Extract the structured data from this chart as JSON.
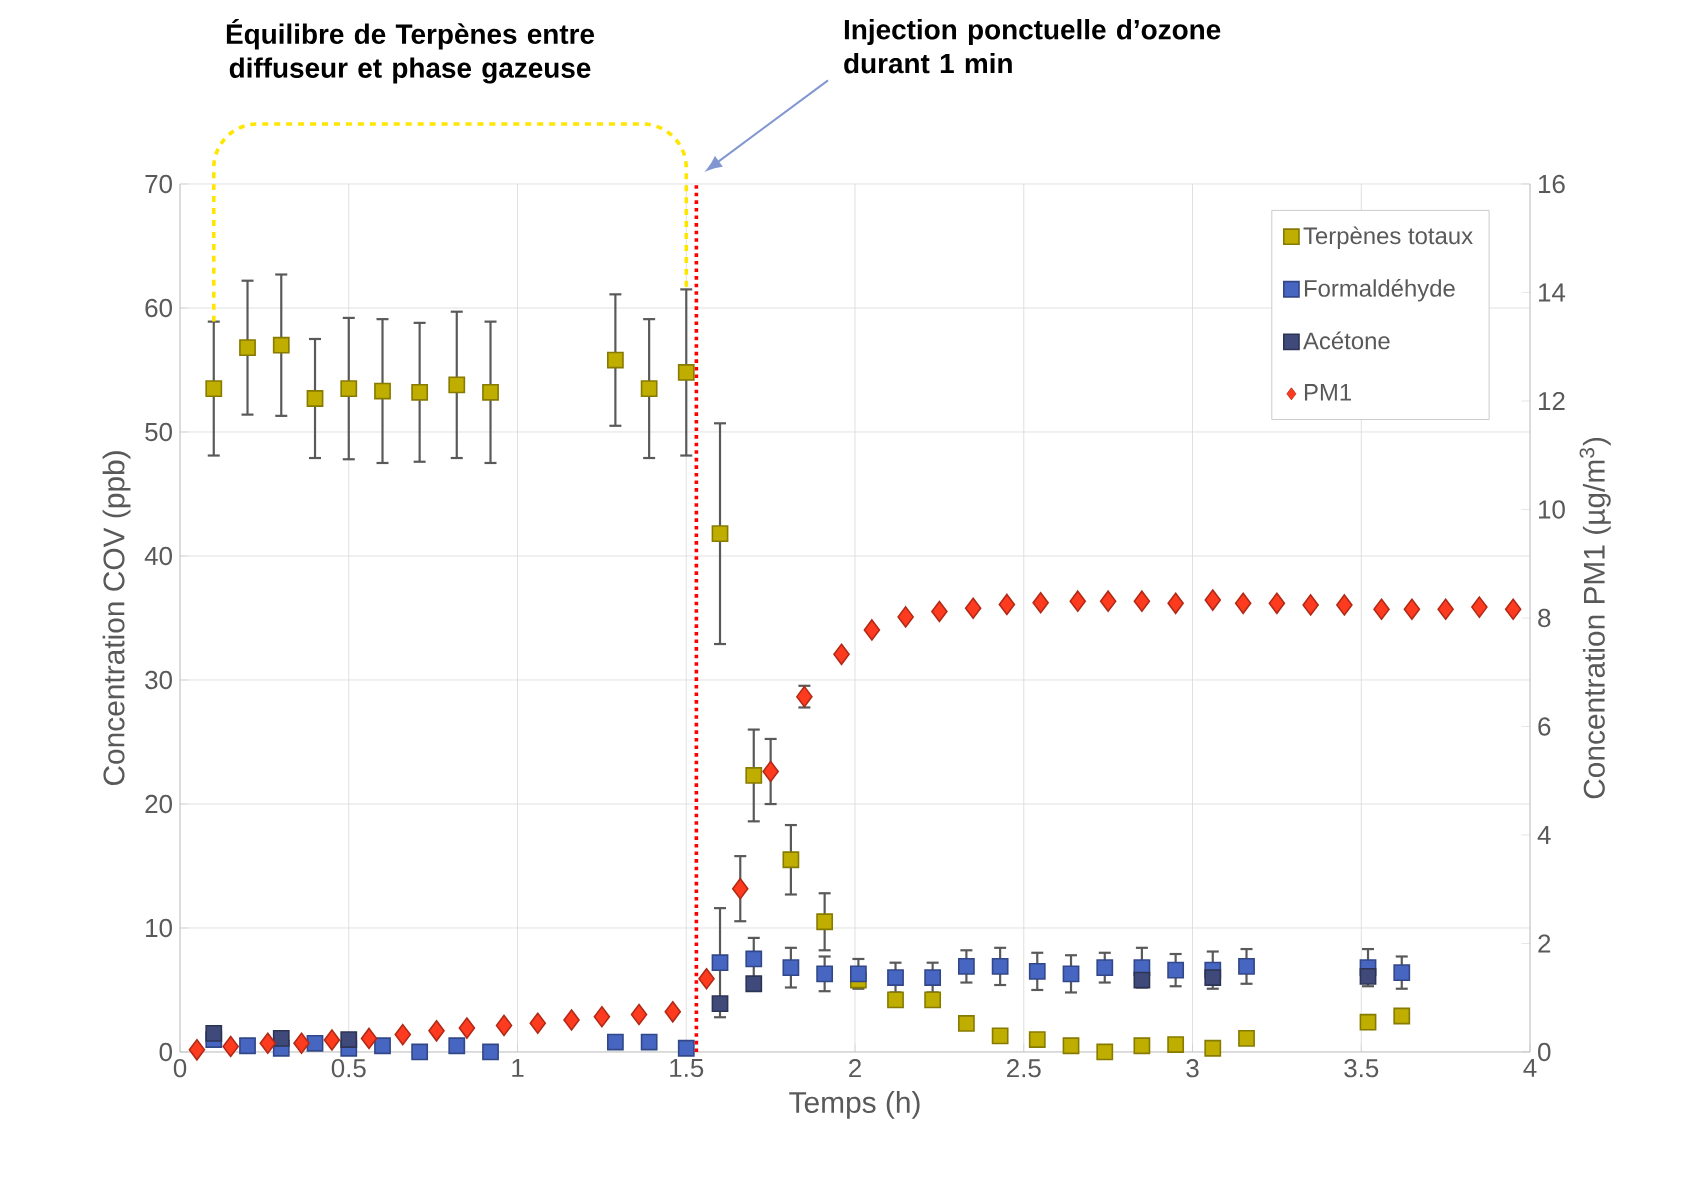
{
  "chart_data": {
    "type": "scatter",
    "xlabel": "Temps (h)",
    "ylabel": "Concentration COV (ppb)",
    "y2label": "Concentration PM1 (µg/m$^{3}$)",
    "annotations": [
      "Équilibre de Terpènes entre diffuseur et phase gazeuse",
      "Injection ponctuelle d’ozone durant 1 min"
    ],
    "xlim": [
      0,
      4
    ],
    "xticks": [
      0,
      0.5,
      1,
      1.5,
      2,
      2.5,
      3,
      3.5,
      4
    ],
    "ylim": [
      0,
      70
    ],
    "yticks": [
      0,
      10,
      20,
      30,
      40,
      50,
      60,
      70
    ],
    "y2lim": [
      0,
      16
    ],
    "y2ticks": [
      0,
      2,
      4,
      6,
      8,
      10,
      12,
      14,
      16
    ],
    "grid": true,
    "legend": "top right",
    "ref_lines": [
      {
        "axis": "x",
        "value": 1.53,
        "color": "#ff0000",
        "line_style": "dotted"
      }
    ],
    "series": [
      {
        "name": "Terpènes totaux",
        "color": "#bfae00",
        "marker": "square",
        "x": [
          0.1,
          0.2,
          0.3,
          0.4,
          0.5,
          0.6,
          0.71,
          0.82,
          0.92,
          1.29,
          1.39,
          1.5,
          1.6,
          1.7,
          1.81,
          1.91,
          2.01,
          2.12,
          2.23,
          2.33,
          2.43,
          2.54,
          2.64,
          2.74,
          2.85,
          2.95,
          3.06,
          3.16,
          3.52,
          3.62
        ],
        "values": [
          53.5,
          56.8,
          57.0,
          52.7,
          53.5,
          53.3,
          53.2,
          53.8,
          53.2,
          55.8,
          53.5,
          54.8,
          41.8,
          22.3,
          15.5,
          10.5,
          5.8,
          4.2,
          4.2,
          2.3,
          1.3,
          1.0,
          0.5,
          0.0,
          0.5,
          0.6,
          0.3,
          1.1,
          2.4,
          2.9
        ],
        "errors": [
          5.4,
          5.4,
          5.7,
          4.8,
          5.7,
          5.8,
          5.6,
          5.9,
          5.7,
          5.3,
          5.6,
          6.7,
          8.9,
          3.7,
          2.8,
          2.3,
          null,
          null,
          null,
          null,
          null,
          null,
          null,
          null,
          null,
          null,
          null,
          null,
          null,
          null
        ]
      },
      {
        "name": "Formaldéhyde",
        "color": "#4766c2",
        "marker": "square",
        "x": [
          0.1,
          0.2,
          0.3,
          0.4,
          0.5,
          0.6,
          0.71,
          0.82,
          0.92,
          1.29,
          1.39,
          1.5,
          1.6,
          1.7,
          1.81,
          1.91,
          2.01,
          2.12,
          2.23,
          2.33,
          2.43,
          2.54,
          2.64,
          2.74,
          2.85,
          2.95,
          3.06,
          3.16,
          3.52,
          3.62
        ],
        "values": [
          1.0,
          0.5,
          0.3,
          0.7,
          0.3,
          0.5,
          0.0,
          0.5,
          0.0,
          0.8,
          0.8,
          0.3,
          7.2,
          7.5,
          6.8,
          6.3,
          6.3,
          6.0,
          6.0,
          6.9,
          6.9,
          6.5,
          6.3,
          6.8,
          6.8,
          6.6,
          6.6,
          6.9,
          6.8,
          6.4
        ],
        "errors": [
          null,
          null,
          null,
          null,
          null,
          null,
          null,
          null,
          null,
          null,
          null,
          null,
          4.4,
          1.7,
          1.6,
          1.4,
          1.2,
          1.2,
          1.2,
          1.3,
          1.5,
          1.5,
          1.5,
          1.2,
          1.6,
          1.3,
          1.5,
          1.4,
          1.5,
          1.3
        ]
      },
      {
        "name": "Acétone",
        "color": "#3f4a7a",
        "marker": "square",
        "x": [
          0.1,
          0.3,
          0.5,
          1.6,
          1.7,
          2.85,
          3.06,
          3.52
        ],
        "values": [
          1.5,
          1.1,
          1.0,
          3.9,
          5.5,
          5.8,
          6.0,
          6.1
        ]
      },
      {
        "name": "PM1",
        "color": "#ff3b1f",
        "marker": "diamond",
        "axis": "y2",
        "x": [
          0.05,
          0.15,
          0.26,
          0.36,
          0.45,
          0.56,
          0.66,
          0.76,
          0.85,
          0.96,
          1.06,
          1.16,
          1.25,
          1.36,
          1.46,
          1.56,
          1.66,
          1.75,
          1.85,
          1.96,
          2.05,
          2.15,
          2.25,
          2.35,
          2.45,
          2.55,
          2.66,
          2.75,
          2.85,
          2.95,
          3.06,
          3.15,
          3.25,
          3.35,
          3.45,
          3.56,
          3.65,
          3.75,
          3.85,
          3.95
        ],
        "values": [
          0.04,
          0.1,
          0.16,
          0.16,
          0.22,
          0.25,
          0.32,
          0.39,
          0.44,
          0.49,
          0.53,
          0.59,
          0.65,
          0.69,
          0.74,
          1.35,
          3.01,
          5.17,
          6.55,
          7.33,
          7.78,
          8.02,
          8.12,
          8.18,
          8.25,
          8.28,
          8.31,
          8.31,
          8.31,
          8.27,
          8.33,
          8.27,
          8.27,
          8.24,
          8.24,
          8.16,
          8.16,
          8.16,
          8.2,
          8.16
        ],
        "errors": [
          null,
          null,
          null,
          null,
          null,
          null,
          null,
          null,
          null,
          null,
          null,
          null,
          null,
          null,
          null,
          null,
          0.6,
          0.6,
          0.2,
          null,
          null,
          null,
          null,
          null,
          null,
          null,
          null,
          null,
          null,
          null,
          null,
          null,
          null,
          null,
          null,
          null,
          null,
          null,
          null,
          null
        ]
      }
    ]
  }
}
